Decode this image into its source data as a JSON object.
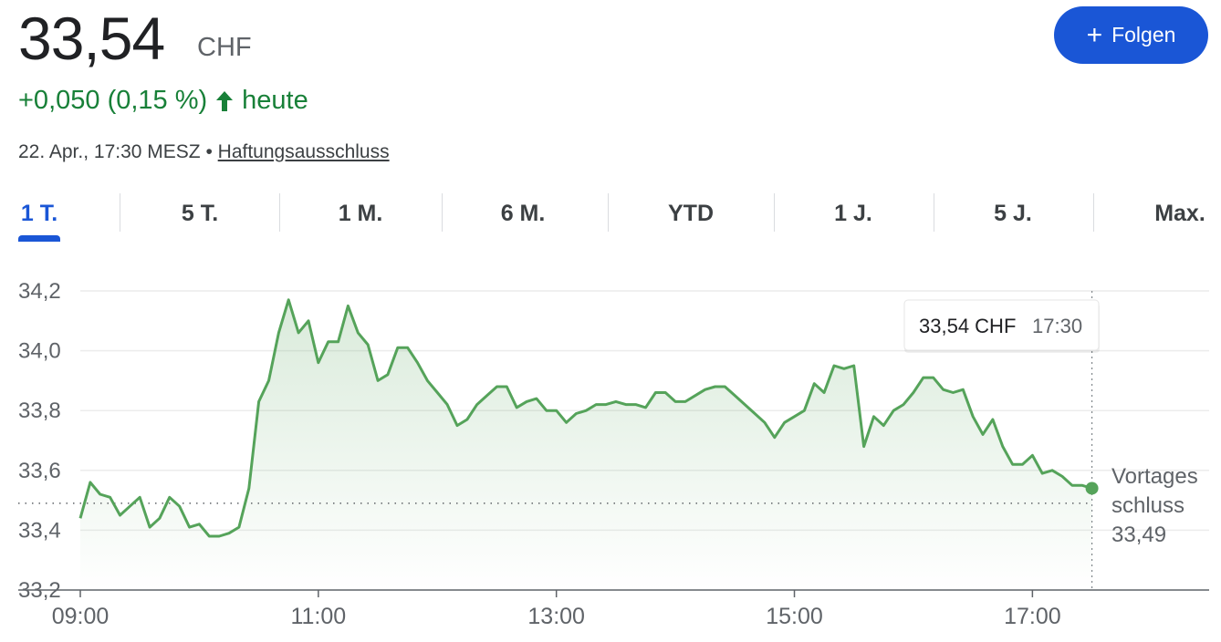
{
  "header": {
    "price": "33,54",
    "currency": "CHF",
    "change": "+0,050 (0,15 %)",
    "period": "heute",
    "timestamp": "22. Apr., 17:30 MESZ",
    "separator": "•",
    "disclaimer": "Haftungsausschluss",
    "follow_button": "Folgen"
  },
  "tabs": {
    "items": [
      "1 T.",
      "5 T.",
      "1 M.",
      "6 M.",
      "YTD",
      "1 J.",
      "5 J.",
      "Max."
    ],
    "active": 0
  },
  "chart_data": {
    "type": "line",
    "x": [
      "09:00",
      "09:05",
      "09:10",
      "09:15",
      "09:20",
      "09:25",
      "09:30",
      "09:35",
      "09:40",
      "09:45",
      "09:50",
      "09:55",
      "10:00",
      "10:05",
      "10:10",
      "10:15",
      "10:20",
      "10:25",
      "10:30",
      "10:35",
      "10:40",
      "10:45",
      "10:50",
      "10:55",
      "11:00",
      "11:05",
      "11:10",
      "11:15",
      "11:20",
      "11:25",
      "11:30",
      "11:35",
      "11:40",
      "11:45",
      "11:50",
      "11:55",
      "12:00",
      "12:05",
      "12:10",
      "12:15",
      "12:20",
      "12:25",
      "12:30",
      "12:35",
      "12:40",
      "12:45",
      "12:50",
      "12:55",
      "13:00",
      "13:05",
      "13:10",
      "13:15",
      "13:20",
      "13:25",
      "13:30",
      "13:35",
      "13:40",
      "13:45",
      "13:50",
      "13:55",
      "14:00",
      "14:05",
      "14:10",
      "14:15",
      "14:20",
      "14:25",
      "14:30",
      "14:35",
      "14:40",
      "14:45",
      "14:50",
      "14:55",
      "15:00",
      "15:05",
      "15:10",
      "15:15",
      "15:20",
      "15:25",
      "15:30",
      "15:35",
      "15:40",
      "15:45",
      "15:50",
      "15:55",
      "16:00",
      "16:05",
      "16:10",
      "16:15",
      "16:20",
      "16:25",
      "16:30",
      "16:35",
      "16:40",
      "16:45",
      "16:50",
      "16:55",
      "17:00",
      "17:05",
      "17:10",
      "17:15",
      "17:20",
      "17:25",
      "17:30"
    ],
    "series": [
      {
        "color": "#55a35a",
        "values": [
          33.44,
          33.56,
          33.52,
          33.51,
          33.45,
          33.48,
          33.51,
          33.41,
          33.44,
          33.51,
          33.48,
          33.41,
          33.42,
          33.38,
          33.38,
          33.39,
          33.41,
          33.54,
          33.83,
          33.9,
          34.06,
          34.17,
          34.06,
          34.1,
          33.96,
          34.03,
          34.03,
          34.15,
          34.06,
          34.02,
          33.9,
          33.92,
          34.01,
          34.01,
          33.96,
          33.9,
          33.86,
          33.82,
          33.75,
          33.77,
          33.82,
          33.85,
          33.88,
          33.88,
          33.81,
          33.83,
          33.84,
          33.8,
          33.8,
          33.76,
          33.79,
          33.8,
          33.82,
          33.82,
          33.83,
          33.82,
          33.82,
          33.81,
          33.86,
          33.86,
          33.83,
          33.83,
          33.85,
          33.87,
          33.88,
          33.88,
          33.85,
          33.82,
          33.79,
          33.76,
          33.71,
          33.76,
          33.78,
          33.8,
          33.89,
          33.86,
          33.95,
          33.94,
          33.95,
          33.68,
          33.78,
          33.75,
          33.8,
          33.82,
          33.86,
          33.91,
          33.91,
          33.87,
          33.86,
          33.87,
          33.78,
          33.72,
          33.77,
          33.68,
          33.62,
          33.62,
          33.65,
          33.59,
          33.6,
          33.58,
          33.55,
          33.55,
          33.54
        ]
      }
    ],
    "xlim": [
      "09:00",
      "18:30"
    ],
    "xticks": [
      "09:00",
      "11:00",
      "13:00",
      "15:00",
      "17:00"
    ],
    "ylim": [
      33.2,
      34.2
    ],
    "yticks": [
      {
        "value": 33.2,
        "label": "33,2"
      },
      {
        "value": 33.4,
        "label": "33,4"
      },
      {
        "value": 33.6,
        "label": "33,6"
      },
      {
        "value": 33.8,
        "label": "33,8"
      },
      {
        "value": 34.0,
        "label": "34,0"
      },
      {
        "value": 34.2,
        "label": "34,2"
      }
    ],
    "grid": true,
    "reference_line": {
      "label_lines": [
        "Vortages",
        "schluss"
      ],
      "value": 33.49,
      "value_label": "33,49"
    },
    "tooltip": {
      "value": "33,54 CHF",
      "time": "17:30"
    }
  }
}
